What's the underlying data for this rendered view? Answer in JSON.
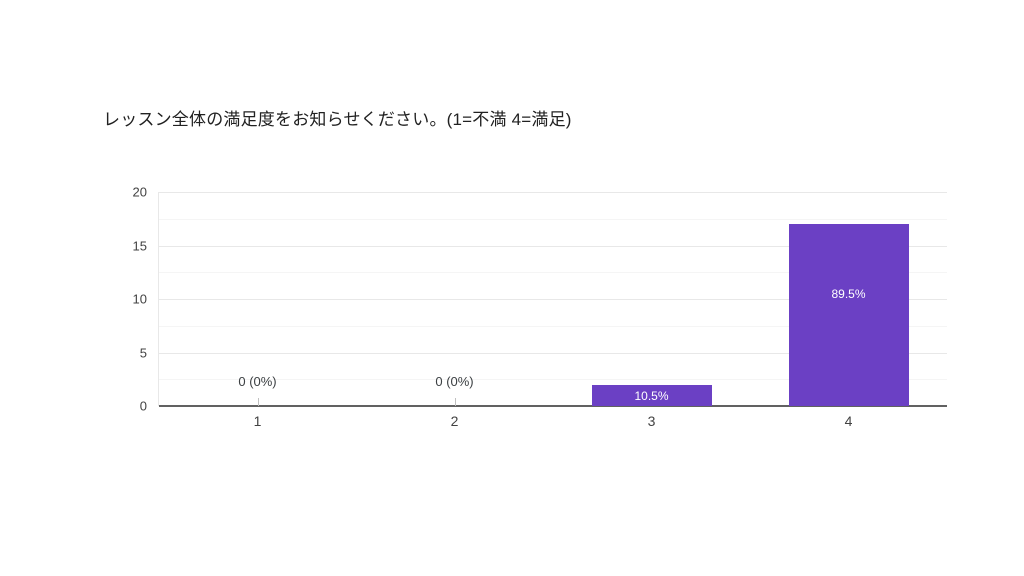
{
  "page": {
    "background_color": "#ffffff"
  },
  "chart_data": {
    "type": "bar",
    "title": "レッスン全体の満足度をお知らせください。(1=不満 4=満足)",
    "categories": [
      "1",
      "2",
      "3",
      "4"
    ],
    "values": [
      0,
      0,
      2,
      17
    ],
    "bar_labels": [
      "0 (0%)",
      "0 (0%)",
      "10.5%",
      "89.5%"
    ],
    "xlabel": "",
    "ylabel": "",
    "ylim": [
      0,
      20
    ],
    "yticks": [
      0,
      5,
      10,
      15,
      20
    ],
    "minor_gridline_step": 2.5,
    "grid": true,
    "legend": "none",
    "colors": {
      "bar_color": "#6b40c4",
      "bar_label_color": "#ffffff",
      "zero_label_color": "#3c4043",
      "axis_label_color": "#424242",
      "major_gridline_color": "#e8e8e8",
      "minor_gridline_color": "#f5f5f5",
      "axis_line_color": "#616161",
      "zero_tick_color": "#c0c0c0"
    }
  }
}
